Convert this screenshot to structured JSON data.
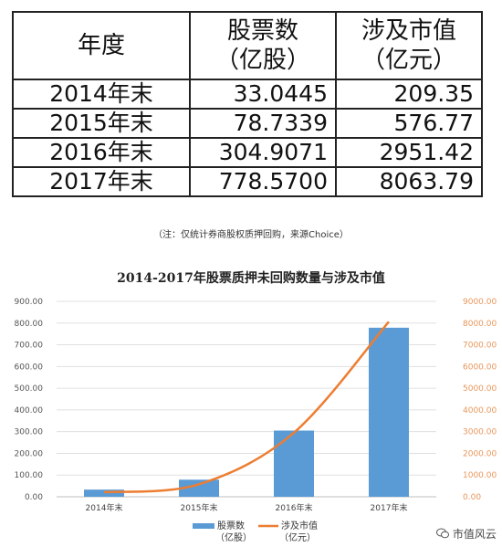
{
  "table": {
    "headers": [
      {
        "line1": "年度",
        "line2": ""
      },
      {
        "line1": "股票数",
        "line2": "（亿股）"
      },
      {
        "line1": "涉及市值",
        "line2": "（亿元）"
      }
    ],
    "rows": [
      {
        "year": "2014年末",
        "shares": "33.0445",
        "value": "209.35"
      },
      {
        "year": "2015年末",
        "shares": "78.7339",
        "value": "576.77"
      },
      {
        "year": "2016年末",
        "shares": "304.9071",
        "value": "2951.42"
      },
      {
        "year": "2017年末",
        "shares": "778.5700",
        "value": "8063.79"
      }
    ]
  },
  "note": "（注：仅统计券商股权质押回购，来源Choice）",
  "watermark": "市值风云",
  "chart_data": {
    "type": "bar",
    "title": "2014-2017年股票质押未回购数量与涉及市值",
    "categories": [
      "2014年末",
      "2015年末",
      "2016年末",
      "2017年末"
    ],
    "series": [
      {
        "name": "股票数（亿股）",
        "type": "bar",
        "axis": "left",
        "color": "#5b9bd5",
        "values": [
          33.0445,
          78.7339,
          304.9071,
          778.57
        ]
      },
      {
        "name": "涉及市值（亿元）",
        "type": "line",
        "axis": "right",
        "color": "#ed7d31",
        "values": [
          209.35,
          576.77,
          2951.42,
          8063.79
        ]
      }
    ],
    "y_left": {
      "min": 0,
      "max": 900,
      "step": 100,
      "ticks": [
        "0.00",
        "100.00",
        "200.00",
        "300.00",
        "400.00",
        "500.00",
        "600.00",
        "700.00",
        "800.00",
        "900.00"
      ]
    },
    "y_right": {
      "min": 0,
      "max": 9000,
      "step": 1000,
      "ticks": [
        "0.00",
        "1000.00",
        "2000.00",
        "3000.00",
        "4000.00",
        "5000.00",
        "6000.00",
        "7000.00",
        "8000.00",
        "9000.00"
      ]
    },
    "legend": {
      "position": "bottom",
      "items": [
        {
          "line1": "股票数",
          "line2": "（亿股）"
        },
        {
          "line1": "涉及市值",
          "line2": "（亿元）"
        }
      ]
    },
    "grid": true
  }
}
